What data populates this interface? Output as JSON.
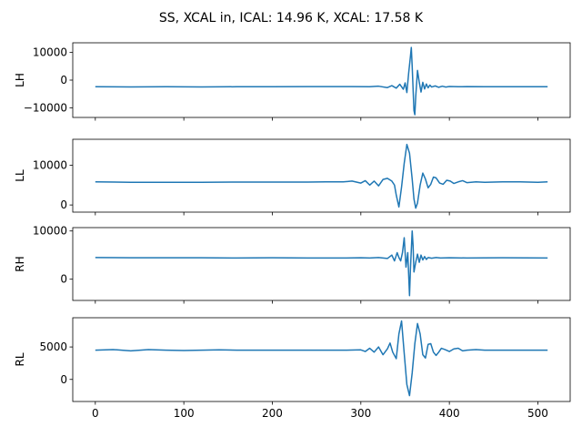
{
  "figure": {
    "title": "SS, XCAL in, ICAL: 14.96 K, XCAL: 17.58 K"
  },
  "colors": {
    "series": "#1f77b4"
  },
  "chart_data": [
    {
      "type": "line",
      "ylabel": "LH",
      "xlim": [
        -25.5,
        536.5
      ],
      "ylim": [
        -13500,
        13500
      ],
      "yticks": [
        -10000,
        0,
        10000
      ],
      "ytick_labels": [
        "−10000",
        "0",
        "10000"
      ],
      "xticks": [
        0,
        100,
        200,
        300,
        400,
        500
      ],
      "show_xtick_labels": false,
      "series": [
        {
          "x": [
            0,
            40,
            80,
            120,
            160,
            200,
            240,
            270,
            290,
            310,
            320,
            330,
            335,
            340,
            344,
            348,
            350,
            352,
            354,
            356,
            357,
            358,
            360,
            361,
            362,
            364,
            366,
            368,
            370,
            372,
            374,
            376,
            378,
            380,
            384,
            388,
            392,
            396,
            400,
            410,
            420,
            440,
            480,
            511
          ],
          "y": [
            -2400,
            -2450,
            -2400,
            -2450,
            -2400,
            -2400,
            -2350,
            -2350,
            -2350,
            -2400,
            -2200,
            -2700,
            -2000,
            -2900,
            -1500,
            -3300,
            -1000,
            -4500,
            2500,
            8500,
            11800,
            5000,
            -11000,
            -12500,
            -6000,
            3500,
            -800,
            -4300,
            -800,
            -3200,
            -1400,
            -2800,
            -1800,
            -2500,
            -2100,
            -2600,
            -2200,
            -2500,
            -2300,
            -2400,
            -2350,
            -2400,
            -2400,
            -2400
          ]
        }
      ]
    },
    {
      "type": "line",
      "ylabel": "LL",
      "xlim": [
        -25.5,
        536.5
      ],
      "ylim": [
        -1800,
        16500
      ],
      "yticks": [
        0,
        10000
      ],
      "ytick_labels": [
        "0",
        "10000"
      ],
      "xticks": [
        0,
        100,
        200,
        300,
        400,
        500
      ],
      "show_xtick_labels": false,
      "series": [
        {
          "x": [
            0,
            40,
            80,
            120,
            160,
            200,
            240,
            260,
            280,
            290,
            300,
            305,
            310,
            315,
            320,
            325,
            330,
            335,
            338,
            340,
            343,
            346,
            349,
            352,
            355,
            358,
            360,
            362,
            364,
            367,
            370,
            373,
            376,
            379,
            382,
            385,
            389,
            393,
            397,
            401,
            405,
            410,
            415,
            420,
            430,
            440,
            460,
            480,
            500,
            511
          ],
          "y": [
            5800,
            5700,
            5700,
            5700,
            5750,
            5750,
            5750,
            5800,
            5800,
            6000,
            5500,
            6100,
            5000,
            6000,
            4800,
            6400,
            6700,
            6000,
            5000,
            2500,
            -500,
            4500,
            10500,
            15200,
            13000,
            6500,
            1500,
            -800,
            500,
            5000,
            8000,
            6500,
            4300,
            5200,
            7000,
            6800,
            5500,
            5200,
            6200,
            6000,
            5400,
            5800,
            6100,
            5600,
            5800,
            5700,
            5800,
            5800,
            5700,
            5800
          ]
        }
      ]
    },
    {
      "type": "line",
      "ylabel": "RH",
      "xlim": [
        -25.5,
        536.5
      ],
      "ylim": [
        -4400,
        10700
      ],
      "yticks": [
        0,
        10000
      ],
      "ytick_labels": [
        "0",
        "10000"
      ],
      "xticks": [
        0,
        100,
        200,
        300,
        400,
        500
      ],
      "show_xtick_labels": false,
      "series": [
        {
          "x": [
            0,
            40,
            80,
            120,
            160,
            200,
            240,
            280,
            300,
            310,
            320,
            330,
            335,
            338,
            341,
            343,
            345,
            347,
            349,
            351,
            353,
            355,
            356,
            357,
            358,
            359,
            360,
            362,
            364,
            366,
            368,
            370,
            372,
            374,
            376,
            380,
            385,
            390,
            400,
            420,
            460,
            511
          ],
          "y": [
            4500,
            4450,
            4450,
            4450,
            4400,
            4450,
            4400,
            4400,
            4450,
            4400,
            4500,
            4300,
            5000,
            3800,
            5500,
            4500,
            3800,
            5500,
            8600,
            2500,
            5500,
            -3400,
            2000,
            6000,
            10000,
            7000,
            1500,
            3500,
            5200,
            3500,
            5000,
            4000,
            4700,
            4100,
            4500,
            4350,
            4500,
            4400,
            4450,
            4400,
            4450,
            4400
          ]
        }
      ]
    },
    {
      "type": "line",
      "ylabel": "RL",
      "xlim": [
        -25.5,
        536.5
      ],
      "ylim": [
        -3400,
        9500
      ],
      "yticks": [
        0,
        5000
      ],
      "ytick_labels": [
        "0",
        "5000"
      ],
      "xticks": [
        0,
        100,
        200,
        300,
        400,
        500
      ],
      "xtick_labels": [
        "0",
        "100",
        "200",
        "300",
        "400",
        "500"
      ],
      "show_xtick_labels": true,
      "series": [
        {
          "x": [
            0,
            20,
            40,
            60,
            80,
            100,
            120,
            140,
            160,
            180,
            200,
            240,
            280,
            300,
            305,
            310,
            315,
            320,
            325,
            330,
            333,
            336,
            340,
            343,
            346,
            349,
            352,
            355,
            358,
            361,
            364,
            367,
            370,
            373,
            376,
            379,
            382,
            385,
            388,
            391,
            395,
            400,
            405,
            410,
            415,
            420,
            430,
            440,
            460,
            480,
            500,
            511
          ],
          "y": [
            4500,
            4600,
            4400,
            4600,
            4500,
            4450,
            4500,
            4550,
            4500,
            4500,
            4500,
            4500,
            4500,
            4550,
            4300,
            4800,
            4200,
            5000,
            3800,
            4700,
            5600,
            4200,
            3200,
            7000,
            9000,
            4000,
            -800,
            -2500,
            1000,
            5500,
            8600,
            7000,
            3800,
            3300,
            5400,
            5500,
            4200,
            3700,
            4200,
            4800,
            4600,
            4300,
            4700,
            4800,
            4400,
            4500,
            4600,
            4500,
            4500,
            4500,
            4500,
            4500
          ]
        }
      ]
    }
  ]
}
